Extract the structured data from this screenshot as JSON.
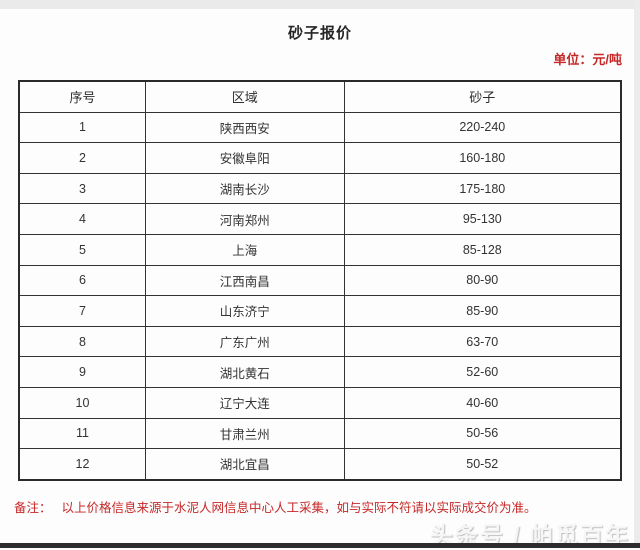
{
  "page": {
    "title": "砂子报价",
    "unit_label": "单位：元/吨",
    "note_label": "备注：",
    "note_text": "以上价格信息来源于水泥人网信息中心人工采集，如与实际不符请以实际成交价为准。",
    "watermark": "头条号 / 帕觅百年"
  },
  "colors": {
    "accent_red": "#c62828",
    "table_border": "#333333",
    "bottom_bar": "#2d2d2d"
  },
  "table": {
    "headers": [
      "序号",
      "区域",
      "砂子"
    ],
    "rows": [
      [
        "1",
        "陕西西安",
        "220-240"
      ],
      [
        "2",
        "安徽阜阳",
        "160-180"
      ],
      [
        "3",
        "湖南长沙",
        "175-180"
      ],
      [
        "4",
        "河南郑州",
        "95-130"
      ],
      [
        "5",
        "上海",
        "85-128"
      ],
      [
        "6",
        "江西南昌",
        "80-90"
      ],
      [
        "7",
        "山东济宁",
        "85-90"
      ],
      [
        "8",
        "广东广州",
        "63-70"
      ],
      [
        "9",
        "湖北黄石",
        "52-60"
      ],
      [
        "10",
        "辽宁大连",
        "40-60"
      ],
      [
        "11",
        "甘肃兰州",
        "50-56"
      ],
      [
        "12",
        "湖北宜昌",
        "50-52"
      ]
    ]
  }
}
